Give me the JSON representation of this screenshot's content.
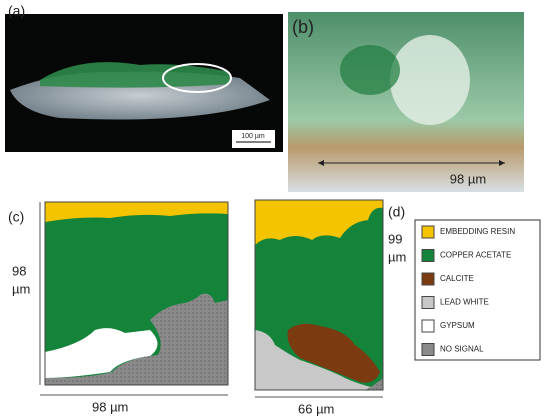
{
  "panels": {
    "a": {
      "label": "(a)",
      "scale_bar": "100 µm"
    },
    "b": {
      "label": "(b)",
      "width": "98 µm"
    },
    "c": {
      "label": "(c)",
      "height": [
        "98",
        "µm"
      ],
      "width": "98 µm"
    },
    "d": {
      "label": "(d)",
      "height": [
        "99",
        "µm"
      ],
      "width": "66 µm"
    }
  },
  "legend": [
    {
      "label": "EMBEDDING RESIN",
      "color": "#f5c400"
    },
    {
      "label": "COPPER ACETATE",
      "color": "#13843a"
    },
    {
      "label": "CALCITE",
      "color": "#7b3a10"
    },
    {
      "label": "LEAD WHITE",
      "color": "#c8c8c8"
    },
    {
      "label": "GYPSUM",
      "color": "#ffffff"
    },
    {
      "label": "NO SIGNAL",
      "color": "#8a8a8a"
    }
  ]
}
